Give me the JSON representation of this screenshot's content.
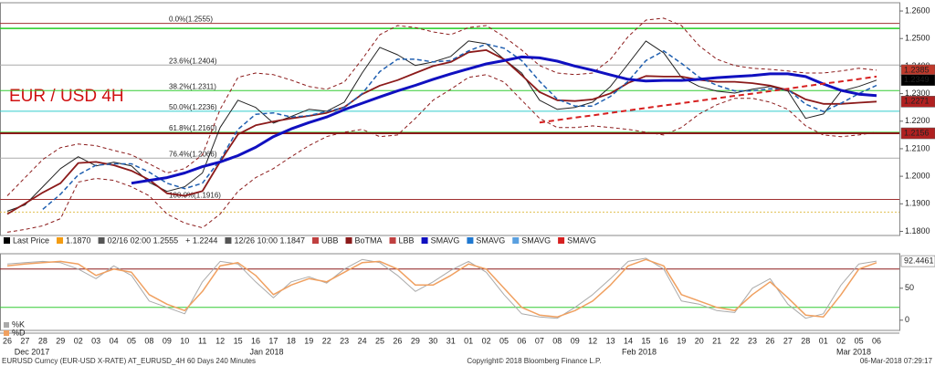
{
  "chart_data": [
    {
      "type": "line",
      "title": "EUR / USD 4H",
      "categories": [
        "26",
        "27",
        "28",
        "29",
        "02",
        "03",
        "04",
        "05",
        "08",
        "09",
        "10",
        "11",
        "12",
        "15",
        "16",
        "17",
        "18",
        "19",
        "22",
        "23",
        "24",
        "25",
        "26",
        "29",
        "30",
        "31",
        "01",
        "02",
        "05",
        "06",
        "07",
        "08",
        "09",
        "12",
        "13",
        "14",
        "15",
        "16",
        "19",
        "20",
        "21",
        "22",
        "23",
        "26",
        "27",
        "28",
        "01",
        "02",
        "05",
        "06"
      ],
      "months": [
        "Dec 2017",
        "Jan 2018",
        "Feb 2018",
        "Mar 2018"
      ],
      "ylim": [
        1.1785,
        1.263
      ],
      "yticks": [
        {
          "value": 1.26,
          "label": "1.2600"
        },
        {
          "value": 1.25,
          "label": "1.2500"
        },
        {
          "value": 1.24,
          "label": "1.2400"
        },
        {
          "value": 1.23,
          "label": "1.2300"
        },
        {
          "value": 1.22,
          "label": "1.2200"
        },
        {
          "value": 1.21,
          "label": "1.2100"
        },
        {
          "value": 1.2,
          "label": "1.2000"
        },
        {
          "value": 1.19,
          "label": "1.1900"
        },
        {
          "value": 1.18,
          "label": "1.1800"
        }
      ],
      "grid": false,
      "fib": [
        {
          "value": 1.2555,
          "label": "0.0%(1.2555)",
          "color": "#a03030"
        },
        {
          "value": 1.2404,
          "label": "23.6%(1.2404)",
          "color": "#aaaaaa"
        },
        {
          "value": 1.2311,
          "label": "38.2%(1.2311)",
          "color": "#33cc33"
        },
        {
          "value": 1.2236,
          "label": "50.0%(1.2236)",
          "color": "#33cccc"
        },
        {
          "value": 1.216,
          "label": "61.8%(1.2160)",
          "color": "#33cc33"
        },
        {
          "value": 1.2066,
          "label": "76.4%(1.2066)",
          "color": "#aaaaaa"
        },
        {
          "value": 1.1916,
          "label": "100.0%(1.1916)",
          "color": "#a03030"
        }
      ],
      "levels": [
        {
          "value": 1.2537,
          "color": "#22cc22",
          "width": 1.5
        },
        {
          "value": 1.2156,
          "color": "#8b1a1a",
          "width": 2
        },
        {
          "value": 1.187,
          "color": "#e0c050",
          "width": 1,
          "dash": "2,2"
        }
      ],
      "series": [
        {
          "color": "#222222",
          "width": 1,
          "values": [
            1.1873,
            1.1896,
            1.1962,
            1.2028,
            1.2071,
            1.2038,
            1.2051,
            1.2038,
            1.1978,
            1.1945,
            1.1962,
            1.2012,
            1.2177,
            1.2276,
            1.225,
            1.2193,
            1.2217,
            1.2243,
            1.2236,
            1.2269,
            1.2375,
            1.2468,
            1.2441,
            1.2402,
            1.2415,
            1.2435,
            1.2491,
            1.2481,
            1.2425,
            1.2375,
            1.2276,
            1.2243,
            1.225,
            1.2269,
            1.2326,
            1.2408,
            1.2491,
            1.2448,
            1.2359,
            1.2326,
            1.2309,
            1.2302,
            1.2316,
            1.2326,
            1.2309,
            1.221,
            1.2226,
            1.2309,
            1.2326,
            1.2349
          ]
        },
        {
          "color": "#8b1a1a",
          "width": 1,
          "dash": "4,3",
          "values": [
            1.1929,
            1.1995,
            1.2061,
            1.2104,
            1.2117,
            1.2111,
            1.2094,
            1.2078,
            1.2045,
            1.2012,
            1.2028,
            1.2078,
            1.2243,
            1.2359,
            1.2375,
            1.2369,
            1.2349,
            1.2326,
            1.2316,
            1.2342,
            1.2425,
            1.2514,
            1.2547,
            1.254,
            1.2524,
            1.2514,
            1.254,
            1.2547,
            1.2507,
            1.2458,
            1.2402,
            1.2375,
            1.2369,
            1.2375,
            1.2425,
            1.2507,
            1.2567,
            1.2574,
            1.2547,
            1.2474,
            1.2425,
            1.2402,
            1.2392,
            1.2388,
            1.2382,
            1.2375,
            1.2375,
            1.2382,
            1.2392,
            1.2385
          ]
        },
        {
          "color": "#8b1a1a",
          "width": 1.8,
          "values": [
            1.1863,
            1.1901,
            1.1941,
            1.1975,
            1.2048,
            1.2052,
            1.204,
            1.202,
            1.1987,
            1.1938,
            1.1929,
            1.1946,
            1.2053,
            1.2152,
            1.2185,
            1.2199,
            1.221,
            1.2219,
            1.223,
            1.2251,
            1.2298,
            1.2329,
            1.2349,
            1.2375,
            1.24,
            1.2415,
            1.245,
            1.2458,
            1.2425,
            1.2367,
            1.2306,
            1.2276,
            1.2273,
            1.2279,
            1.2301,
            1.2339,
            1.2364,
            1.2362,
            1.2362,
            1.235,
            1.2343,
            1.2343,
            1.2338,
            1.2329,
            1.2313,
            1.2279,
            1.2263,
            1.2263,
            1.2267,
            1.2271
          ]
        },
        {
          "color": "#8b1a1a",
          "width": 1,
          "dash": "4,3",
          "values": [
            1.1797,
            1.1807,
            1.182,
            1.1846,
            1.1979,
            1.1992,
            1.1985,
            1.1962,
            1.1929,
            1.1863,
            1.183,
            1.1813,
            1.1863,
            1.1945,
            1.1995,
            1.2028,
            1.2071,
            1.2111,
            1.2144,
            1.216,
            1.217,
            1.2144,
            1.215,
            1.221,
            1.2276,
            1.2316,
            1.2359,
            1.2369,
            1.2342,
            1.2276,
            1.221,
            1.2177,
            1.2177,
            1.2183,
            1.2177,
            1.217,
            1.216,
            1.215,
            1.2177,
            1.2226,
            1.226,
            1.2283,
            1.2283,
            1.2269,
            1.2243,
            1.2183,
            1.215,
            1.2144,
            1.215,
            1.216
          ]
        },
        {
          "color": "#1f5fb0",
          "width": 1.5,
          "dash": "5,3",
          "values": [
            null,
            null,
            1.188,
            1.1935,
            1.2005,
            1.204,
            1.2045,
            1.2045,
            1.2015,
            1.1975,
            1.1955,
            1.1975,
            1.206,
            1.217,
            1.2225,
            1.223,
            1.2215,
            1.222,
            1.2235,
            1.225,
            1.23,
            1.238,
            1.2425,
            1.2425,
            1.2415,
            1.242,
            1.2455,
            1.248,
            1.2465,
            1.242,
            1.2345,
            1.228,
            1.2255,
            1.2255,
            1.229,
            1.2345,
            1.242,
            1.2455,
            1.241,
            1.236,
            1.233,
            1.231,
            1.231,
            1.2318,
            1.2315,
            1.2262,
            1.2235,
            1.2265,
            1.23,
            1.233
          ]
        },
        {
          "color": "#1010c0",
          "width": 3,
          "values": [
            null,
            null,
            null,
            null,
            null,
            null,
            null,
            1.1975,
            1.1985,
            1.1995,
            1.2012,
            1.2035,
            1.2052,
            1.2075,
            1.2105,
            1.2144,
            1.2172,
            1.2195,
            1.2215,
            1.2242,
            1.2265,
            1.2288,
            1.231,
            1.233,
            1.2352,
            1.2372,
            1.239,
            1.2408,
            1.242,
            1.2433,
            1.243,
            1.2418,
            1.24,
            1.2385,
            1.2368,
            1.2352,
            1.2346,
            1.2348,
            1.2348,
            1.2352,
            1.2358,
            1.2362,
            1.2366,
            1.2372,
            1.2372,
            1.2362,
            1.2335,
            1.2312,
            1.2298,
            1.2293
          ]
        },
        {
          "color": "#d62020",
          "width": 2,
          "dash": "6,4",
          "values": [
            null,
            null,
            null,
            null,
            null,
            null,
            null,
            null,
            null,
            null,
            null,
            null,
            null,
            null,
            null,
            null,
            null,
            null,
            null,
            null,
            null,
            null,
            null,
            null,
            null,
            null,
            null,
            null,
            null,
            null,
            1.2195,
            1.2204,
            1.2213,
            1.2221,
            1.223,
            1.2239,
            1.2248,
            1.2257,
            1.2265,
            1.2274,
            1.2283,
            1.2292,
            1.23,
            1.2309,
            1.2318,
            1.2327,
            1.2336,
            1.2344,
            1.2353,
            1.2362
          ]
        }
      ],
      "legend": [
        {
          "label": "Last Price",
          "color": "#000000"
        },
        {
          "label": "1.1870",
          "color": "#f39c12"
        },
        {
          "label": "02/16 02:00 1.2555",
          "color": "#555555"
        },
        {
          "label": "+ 1.2244"
        },
        {
          "label": "12/26 10:00 1.1847",
          "color": "#555555"
        },
        {
          "label": "UBB",
          "color": "#c04040"
        },
        {
          "label": "BoTMA",
          "color": "#8b1a1a"
        },
        {
          "label": "LBB",
          "color": "#c04040"
        },
        {
          "label": "SMAVG",
          "color": "#1010c0"
        },
        {
          "label": "SMAVG",
          "color": "#1f78d0"
        },
        {
          "label": "SMAVG",
          "color": "#5aa0e0"
        },
        {
          "label": "SMAVG",
          "color": "#d62020"
        }
      ]
    },
    {
      "type": "line",
      "ylim": [
        -16,
        104
      ],
      "yticks": [
        0,
        50
      ],
      "levels": [
        {
          "value": 80,
          "color": "#8b1a1a",
          "width": 1
        },
        {
          "value": 20,
          "color": "#33cc33",
          "width": 1
        }
      ],
      "series": [
        {
          "name": "%K",
          "color": "#aaaaaa",
          "width": 1,
          "values": [
            88,
            90,
            92,
            90,
            80,
            65,
            85,
            70,
            30,
            20,
            10,
            60,
            92,
            88,
            60,
            35,
            60,
            68,
            58,
            80,
            95,
            90,
            70,
            45,
            60,
            78,
            92,
            75,
            40,
            10,
            5,
            3,
            20,
            40,
            65,
            92,
            97,
            80,
            30,
            25,
            15,
            12,
            50,
            65,
            25,
            3,
            10,
            55,
            88,
            92.4461
          ]
        },
        {
          "name": "%D",
          "color": "#f0a060",
          "width": 1.5,
          "values": [
            85,
            88,
            90,
            92,
            88,
            70,
            80,
            75,
            40,
            25,
            15,
            45,
            85,
            90,
            70,
            40,
            55,
            65,
            60,
            75,
            90,
            92,
            80,
            55,
            55,
            70,
            88,
            80,
            50,
            20,
            8,
            5,
            15,
            30,
            55,
            85,
            95,
            85,
            40,
            30,
            20,
            15,
            40,
            60,
            35,
            8,
            5,
            40,
            80,
            90
          ]
        }
      ]
    }
  ],
  "footer": {
    "left": "EURUSD Curncy (EUR-USD X-RATE) AT_EURUSD_4H 60 Days 240 Minutes",
    "center": "Copyright© 2018 Bloomberg Finance L.P.",
    "right": "06-Mar-2018 07:29:17"
  }
}
